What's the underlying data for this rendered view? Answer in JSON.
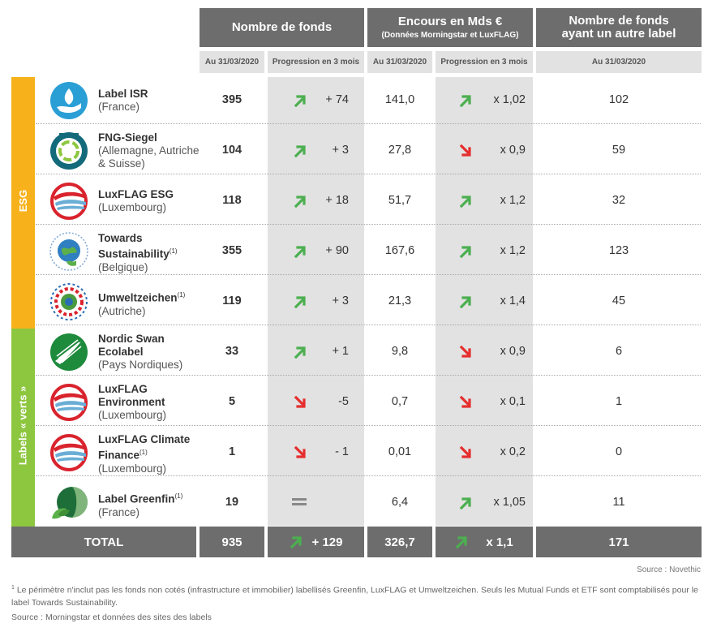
{
  "headers": {
    "nombre_fonds": "Nombre de fonds",
    "encours_main": "Encours en Mds €",
    "encours_sub": "(Données Morningstar et LuxFLAG)",
    "autre_label_l1": "Nombre de fonds",
    "autre_label_l2": "ayant un autre label",
    "sub_date": "Au 31/03/2020",
    "sub_prog": "Progression en 3 mois"
  },
  "bands": {
    "esg": "ESG",
    "verts": "Labels « verts »"
  },
  "colors": {
    "esg": "#f7b21b",
    "verts": "#8dc63f",
    "up": "#4caf50",
    "down": "#e62e2e",
    "header": "#6d6d6d"
  },
  "rows": [
    {
      "name": "Label ISR",
      "sup": "",
      "country": "(France)",
      "logo": "isr-hand-logo",
      "funds": "395",
      "funds_trend": "up",
      "funds_delta": "+ 74",
      "aum": "141,0",
      "aum_trend": "up",
      "aum_mult": "x 1,02",
      "other": "102"
    },
    {
      "name": "FNG-Siegel",
      "sup": "",
      "country": "(Allemagne, Autriche & Suisse)",
      "logo": "fng-siegel-logo",
      "funds": "104",
      "funds_trend": "up",
      "funds_delta": "+ 3",
      "aum": "27,8",
      "aum_trend": "down",
      "aum_mult": "x 0,9",
      "other": "59"
    },
    {
      "name": "LuxFLAG ESG",
      "sup": "",
      "country": "(Luxembourg)",
      "logo": "luxflag-logo",
      "funds": "118",
      "funds_trend": "up",
      "funds_delta": "+ 18",
      "aum": "51,7",
      "aum_trend": "up",
      "aum_mult": "x 1,2",
      "other": "32"
    },
    {
      "name": "Towards Sustainability",
      "sup": "(1)",
      "country": "(Belgique)",
      "logo": "towards-sustainability-logo",
      "funds": "355",
      "funds_trend": "up",
      "funds_delta": "+ 90",
      "aum": "167,6",
      "aum_trend": "up",
      "aum_mult": "x 1,2",
      "other": "123"
    },
    {
      "name": "Umweltzeichen",
      "sup": "(1)",
      "country": "(Autriche)",
      "logo": "umweltzeichen-logo",
      "funds": "119",
      "funds_trend": "up",
      "funds_delta": "+ 3",
      "aum": "21,3",
      "aum_trend": "up",
      "aum_mult": "x 1,4",
      "other": "45"
    },
    {
      "name": "Nordic Swan Ecolabel",
      "sup": "",
      "country": "(Pays Nordiques)",
      "logo": "nordic-swan-logo",
      "funds": "33",
      "funds_trend": "up",
      "funds_delta": "+ 1",
      "aum": "9,8",
      "aum_trend": "down",
      "aum_mult": "x 0,9",
      "other": "6"
    },
    {
      "name": "LuxFLAG Environment",
      "sup": "",
      "country": "(Luxembourg)",
      "logo": "luxflag-logo",
      "funds": "5",
      "funds_trend": "down",
      "funds_delta": "-5",
      "aum": "0,7",
      "aum_trend": "down",
      "aum_mult": "x 0,1",
      "other": "1"
    },
    {
      "name": "LuxFLAG Climate Finance",
      "sup": "(1)",
      "country": "(Luxembourg)",
      "logo": "luxflag-logo",
      "funds": "1",
      "funds_trend": "down",
      "funds_delta": "- 1",
      "aum": "0,01",
      "aum_trend": "down",
      "aum_mult": "x 0,2",
      "other": "0"
    },
    {
      "name": "Label Greenfin",
      "sup": "(1)",
      "country": "(France)",
      "logo": "greenfin-logo",
      "funds": "19",
      "funds_trend": "equal",
      "funds_delta": "",
      "aum": "6,4",
      "aum_trend": "up",
      "aum_mult": "x 1,05",
      "other": "11"
    }
  ],
  "total": {
    "label": "TOTAL",
    "funds": "935",
    "funds_delta": "+ 129",
    "aum": "326,7",
    "aum_mult": "x 1,1",
    "other": "171"
  },
  "source_right": "Source : Novethic",
  "footnote_mark": "1",
  "footnote": "Le périmètre n'inclut pas les fonds non cotés (infrastructure et immobilier) labellisés Greenfin, LuxFLAG et Umweltzeichen. Seuls les Mutual Funds et ETF sont comptabilisés pour le label Towards Sustainability.",
  "source_left": "Source : Morningstar et données des sites des labels"
}
